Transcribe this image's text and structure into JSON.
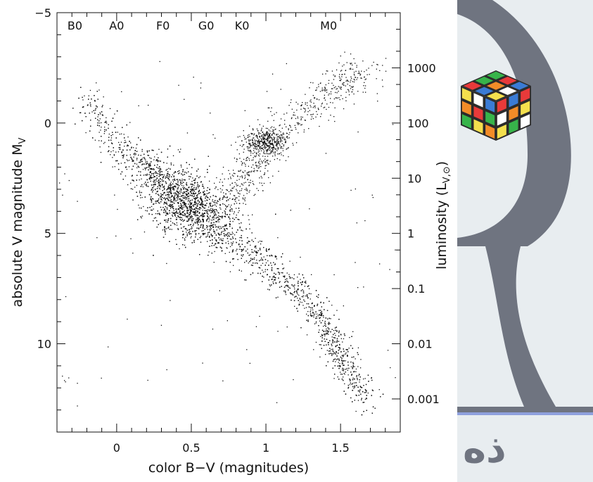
{
  "chart_data": {
    "type": "scatter",
    "title": "",
    "xlabel": "color B−V (magnitudes)",
    "ylabel_main": "absolute V magnitude M",
    "ylabel_sub": "V",
    "y2label_main": "luminosity (L",
    "y2label_sub": "V,⊙",
    "y2label_close": ")",
    "xlim": [
      -0.4,
      1.9
    ],
    "ylim": [
      -5,
      14
    ],
    "y_inverted": true,
    "x_ticks": [
      "0",
      "0.5",
      "1",
      "1.5"
    ],
    "y_ticks": [
      "−5",
      "0",
      "5",
      "10"
    ],
    "y2_ticks": [
      "1000",
      "100",
      "10",
      "1",
      "0.1",
      "0.01",
      "0.001"
    ],
    "spectral_labels": [
      "B0",
      "A0",
      "F0",
      "G0",
      "K0",
      "M0"
    ],
    "spectral_positions": [
      -0.28,
      0.0,
      0.31,
      0.6,
      0.84,
      1.42
    ],
    "luminosity_magnitudes": [
      -2.5,
      0,
      2.5,
      5,
      7.5,
      10,
      12.5
    ],
    "grid": false,
    "legend": "none",
    "series": [
      {
        "points": "dense",
        "note_structure": [
          {
            "component": "main sequence",
            "path_x": [
              -0.22,
              -0.05,
              0.15,
              0.35,
              0.5,
              0.62,
              0.8,
              1.0,
              1.2,
              1.35,
              1.45,
              1.55,
              1.68
            ],
            "path_y": [
              -1.2,
              0.6,
              1.6,
              2.9,
              3.9,
              4.6,
              5.5,
              6.4,
              7.5,
              8.6,
              9.9,
              11.2,
              12.6
            ]
          },
          {
            "component": "red clump",
            "center_x": 1.0,
            "center_y": 0.8
          },
          {
            "component": "red giant branch",
            "path_x": [
              0.75,
              0.85,
              0.95,
              1.1,
              1.3,
              1.5,
              1.65
            ],
            "path_y": [
              3.5,
              2.5,
              1.5,
              0.3,
              -0.8,
              -1.8,
              -2.4
            ]
          }
        ]
      }
    ]
  },
  "banner": {
    "text": "ذه",
    "colors": {
      "background": "#e8edf0",
      "arc": "#6f7480",
      "bar": "#6f7480",
      "accent_line": "#8ea0dd",
      "cube": [
        "#e83a3a",
        "#f4e04d",
        "#37b44a",
        "#3a7bd5",
        "#f28c28",
        "#ffffff"
      ]
    }
  }
}
